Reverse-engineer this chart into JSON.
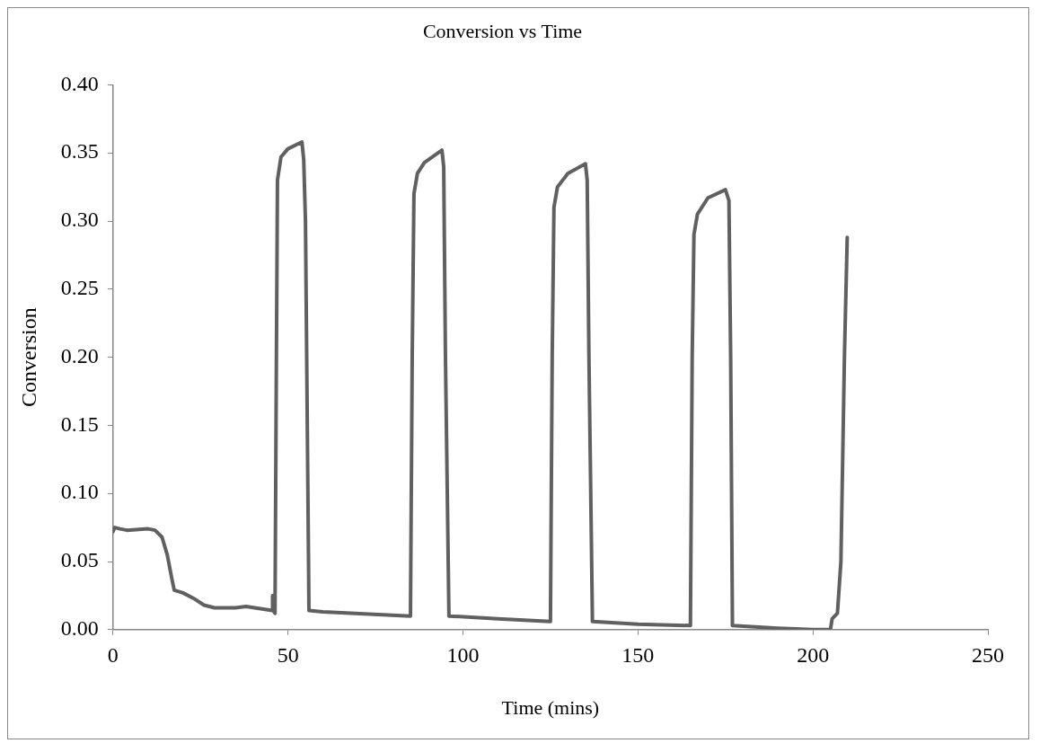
{
  "chart_data": {
    "type": "line",
    "title": "Conversion vs Time",
    "xlabel": "Time (mins)",
    "ylabel": "Conversion",
    "xlim": [
      0,
      250
    ],
    "xticks": [
      0,
      50,
      100,
      150,
      200,
      250
    ],
    "ylim": [
      0,
      0.4
    ],
    "yticks": [
      {
        "value": 0,
        "label": "0.00"
      },
      {
        "value": 0.05,
        "label": "0.05"
      },
      {
        "value": 0.1,
        "label": "0.10"
      },
      {
        "value": 0.15,
        "label": "0.15"
      },
      {
        "value": 0.2,
        "label": "0.20"
      },
      {
        "value": 0.25,
        "label": "0.25"
      },
      {
        "value": 0.3,
        "label": "0.30"
      },
      {
        "value": 0.35,
        "label": "0.35"
      },
      {
        "value": 0.4,
        "label": "0.40"
      }
    ],
    "grid": false,
    "legend": false,
    "marker": "none",
    "line_style": "solid",
    "series": [
      {
        "color": "#606060",
        "x": [
          0,
          0.5,
          2,
          4,
          10,
          12,
          14,
          15.5,
          17,
          17.5,
          20,
          23,
          26,
          29,
          35,
          38,
          43,
          45.5,
          45.6,
          46,
          46.3,
          46.7,
          47,
          48,
          50,
          54,
          54.5,
          55,
          56,
          60,
          85,
          85.5,
          86,
          87,
          89,
          94,
          94.5,
          95,
          96,
          110,
          125,
          125.5,
          126,
          127,
          130,
          135,
          135.5,
          136,
          137,
          150,
          165,
          165.5,
          166,
          167,
          170,
          175,
          176,
          176.5,
          177,
          190,
          200,
          205,
          205.5,
          207,
          208,
          209,
          209.8
        ],
        "values": [
          0.072,
          0.075,
          0.074,
          0.073,
          0.074,
          0.073,
          0.068,
          0.055,
          0.035,
          0.029,
          0.027,
          0.023,
          0.018,
          0.016,
          0.016,
          0.017,
          0.015,
          0.014,
          0.025,
          0.013,
          0.012,
          0.2,
          0.33,
          0.347,
          0.353,
          0.358,
          0.345,
          0.3,
          0.014,
          0.013,
          0.01,
          0.2,
          0.32,
          0.335,
          0.343,
          0.352,
          0.34,
          0.2,
          0.01,
          0.008,
          0.006,
          0.2,
          0.31,
          0.325,
          0.335,
          0.342,
          0.33,
          0.2,
          0.006,
          0.004,
          0.003,
          0.2,
          0.29,
          0.305,
          0.317,
          0.323,
          0.315,
          0.2,
          0.003,
          0.001,
          0,
          0,
          0.008,
          0.012,
          0.05,
          0.2,
          0.288
        ]
      }
    ]
  }
}
